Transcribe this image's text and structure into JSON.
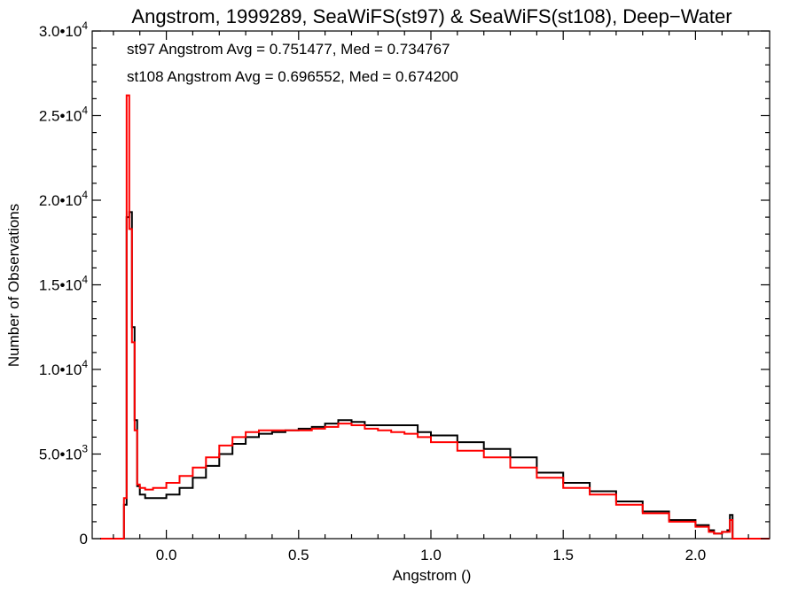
{
  "chart_data": {
    "type": "step",
    "title": "Angstrom, 1999289, SeaWiFS(st97) & SeaWiFS(st108), Deep−Water",
    "xlabel": "Angstrom ()",
    "ylabel": "Number of Observations",
    "xlim": [
      -0.28,
      2.28
    ],
    "ylim": [
      0,
      30000
    ],
    "x_ticks": [
      {
        "value": 0.0,
        "label": "0.0"
      },
      {
        "value": 0.5,
        "label": "0.5"
      },
      {
        "value": 1.0,
        "label": "1.0"
      },
      {
        "value": 1.5,
        "label": "1.5"
      },
      {
        "value": 2.0,
        "label": "2.0"
      }
    ],
    "y_ticks": [
      {
        "value": 0,
        "mantissa": "0",
        "exponent": ""
      },
      {
        "value": 5000,
        "mantissa": "5.0•10",
        "exponent": "3"
      },
      {
        "value": 10000,
        "mantissa": "1.0•10",
        "exponent": "4"
      },
      {
        "value": 15000,
        "mantissa": "1.5•10",
        "exponent": "4"
      },
      {
        "value": 20000,
        "mantissa": "2.0•10",
        "exponent": "4"
      },
      {
        "value": 25000,
        "mantissa": "2.5•10",
        "exponent": "4"
      },
      {
        "value": 30000,
        "mantissa": "3.0•10",
        "exponent": "4"
      }
    ],
    "annotations": [
      {
        "text": "st97 Angstrom Avg = 0.751477, Med = 0.734767",
        "color": "#000000"
      },
      {
        "text": "st108 Angstrom Avg = 0.696552, Med = 0.674200",
        "color": "#ff0000"
      }
    ],
    "series": [
      {
        "color": "#000000",
        "x": [
          -0.25,
          -0.17,
          -0.16,
          -0.15,
          -0.14,
          -0.13,
          -0.12,
          -0.11,
          -0.1,
          -0.08,
          -0.05,
          0.0,
          0.05,
          0.1,
          0.15,
          0.2,
          0.25,
          0.3,
          0.35,
          0.4,
          0.45,
          0.5,
          0.55,
          0.6,
          0.65,
          0.7,
          0.75,
          0.8,
          0.85,
          0.9,
          0.95,
          1.0,
          1.1,
          1.2,
          1.3,
          1.4,
          1.5,
          1.6,
          1.7,
          1.8,
          1.9,
          2.0,
          2.05,
          2.07,
          2.08,
          2.1,
          2.12,
          2.13,
          2.14,
          2.15,
          2.25
        ],
        "values": [
          0,
          0,
          2000,
          19000,
          19300,
          12500,
          7000,
          3100,
          2600,
          2400,
          2400,
          2600,
          3000,
          3600,
          4300,
          5000,
          5600,
          6000,
          6200,
          6300,
          6400,
          6500,
          6600,
          6800,
          7000,
          6900,
          6700,
          6700,
          6700,
          6700,
          6300,
          6100,
          5700,
          5300,
          4800,
          3900,
          3300,
          2800,
          2200,
          1600,
          1100,
          800,
          500,
          300,
          300,
          400,
          500,
          1400,
          0,
          0,
          0
        ]
      },
      {
        "color": "#ff0000",
        "x": [
          -0.25,
          -0.17,
          -0.16,
          -0.15,
          -0.14,
          -0.13,
          -0.12,
          -0.11,
          -0.1,
          -0.08,
          -0.05,
          0.0,
          0.05,
          0.1,
          0.15,
          0.2,
          0.25,
          0.3,
          0.35,
          0.4,
          0.45,
          0.5,
          0.55,
          0.6,
          0.65,
          0.7,
          0.75,
          0.8,
          0.85,
          0.9,
          0.95,
          1.0,
          1.1,
          1.2,
          1.3,
          1.4,
          1.5,
          1.6,
          1.7,
          1.8,
          1.9,
          2.0,
          2.05,
          2.07,
          2.08,
          2.1,
          2.12,
          2.13,
          2.14,
          2.15,
          2.25
        ],
        "values": [
          0,
          0,
          2400,
          26200,
          18300,
          11600,
          6400,
          3200,
          3000,
          2900,
          3000,
          3300,
          3700,
          4200,
          4800,
          5500,
          6000,
          6300,
          6400,
          6400,
          6400,
          6400,
          6500,
          6600,
          6800,
          6700,
          6500,
          6400,
          6300,
          6200,
          6000,
          5700,
          5200,
          4800,
          4200,
          3600,
          3000,
          2600,
          2000,
          1500,
          1000,
          700,
          400,
          300,
          300,
          400,
          400,
          1100,
          0,
          0,
          0
        ]
      }
    ]
  }
}
